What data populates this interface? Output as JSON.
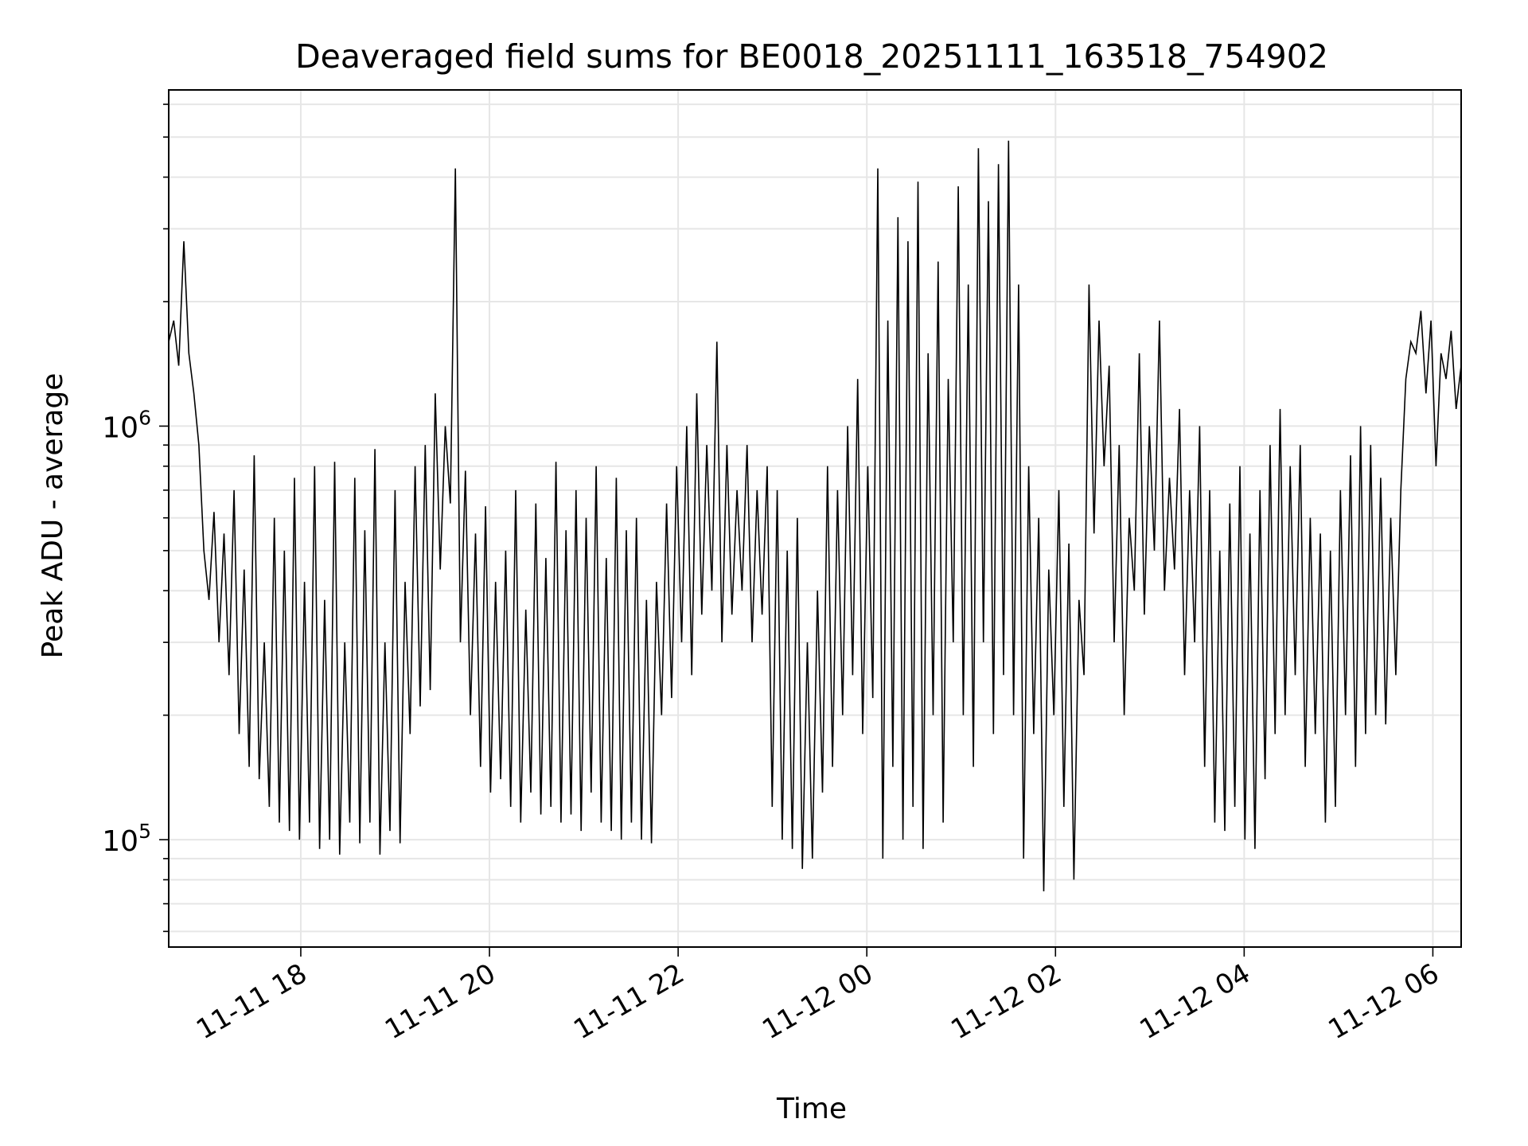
{
  "chart_data": {
    "type": "line",
    "title": "Deaveraged field sums for BE0018_20251111_163518_754902",
    "xlabel": "Time",
    "ylabel": "Peak ADU - average",
    "x_start": "2025-11-11 16:36",
    "x_end": "2025-11-12 06:18",
    "xlim": [
      "2025-11-11 16:36",
      "2025-11-12 06:18"
    ],
    "ylim": [
      55000,
      6500000
    ],
    "yscale": "log",
    "grid": true,
    "line_color": "#000000",
    "x_tick_labels": [
      "11-11 18",
      "11-11 20",
      "11-11 22",
      "11-12 00",
      "11-12 02",
      "11-12 04",
      "11-12 06"
    ],
    "y_tick_labels": [
      {
        "base": "10",
        "exp": "5"
      },
      {
        "base": "10",
        "exp": "6"
      }
    ],
    "series": [
      {
        "values": [
          1600000,
          1800000,
          1400000,
          2800000,
          1500000,
          1200000,
          900000,
          500000,
          380000,
          620000,
          300000,
          550000,
          250000,
          700000,
          180000,
          450000,
          150000,
          850000,
          140000,
          300000,
          120000,
          600000,
          110000,
          500000,
          105000,
          750000,
          100000,
          420000,
          110000,
          800000,
          95000,
          380000,
          100000,
          820000,
          92000,
          300000,
          110000,
          750000,
          98000,
          560000,
          110000,
          880000,
          92000,
          300000,
          105000,
          700000,
          98000,
          420000,
          180000,
          800000,
          210000,
          900000,
          230000,
          1200000,
          450000,
          1000000,
          650000,
          4200000,
          300000,
          780000,
          200000,
          550000,
          150000,
          640000,
          130000,
          420000,
          140000,
          500000,
          120000,
          700000,
          110000,
          360000,
          130000,
          650000,
          115000,
          480000,
          120000,
          820000,
          110000,
          560000,
          115000,
          700000,
          105000,
          600000,
          130000,
          800000,
          110000,
          480000,
          105000,
          750000,
          100000,
          560000,
          110000,
          600000,
          100000,
          380000,
          98000,
          420000,
          200000,
          650000,
          220000,
          800000,
          300000,
          1000000,
          250000,
          1200000,
          350000,
          900000,
          400000,
          1600000,
          300000,
          900000,
          350000,
          700000,
          400000,
          900000,
          300000,
          700000,
          350000,
          800000,
          120000,
          700000,
          100000,
          500000,
          95000,
          600000,
          85000,
          300000,
          90000,
          400000,
          130000,
          800000,
          150000,
          700000,
          200000,
          1000000,
          250000,
          1300000,
          180000,
          800000,
          220000,
          4200000,
          90000,
          1800000,
          150000,
          3200000,
          100000,
          2800000,
          120000,
          3900000,
          95000,
          1500000,
          200000,
          2500000,
          110000,
          1300000,
          300000,
          3800000,
          200000,
          2200000,
          150000,
          4700000,
          300000,
          3500000,
          180000,
          4300000,
          250000,
          4900000,
          200000,
          2200000,
          90000,
          800000,
          180000,
          600000,
          75000,
          450000,
          200000,
          700000,
          120000,
          520000,
          80000,
          380000,
          250000,
          2200000,
          550000,
          1800000,
          800000,
          1400000,
          300000,
          900000,
          200000,
          600000,
          400000,
          1500000,
          350000,
          1000000,
          500000,
          1800000,
          400000,
          750000,
          450000,
          1100000,
          250000,
          700000,
          300000,
          1000000,
          150000,
          700000,
          110000,
          500000,
          105000,
          650000,
          120000,
          800000,
          100000,
          550000,
          95000,
          700000,
          140000,
          900000,
          180000,
          1100000,
          200000,
          800000,
          250000,
          900000,
          150000,
          600000,
          180000,
          550000,
          110000,
          500000,
          120000,
          700000,
          200000,
          850000,
          150000,
          1000000,
          180000,
          900000,
          200000,
          750000,
          190000,
          600000,
          250000,
          700000,
          1300000,
          1600000,
          1500000,
          1900000,
          1200000,
          1800000,
          800000,
          1500000,
          1300000,
          1700000,
          1100000,
          1400000
        ]
      }
    ]
  }
}
